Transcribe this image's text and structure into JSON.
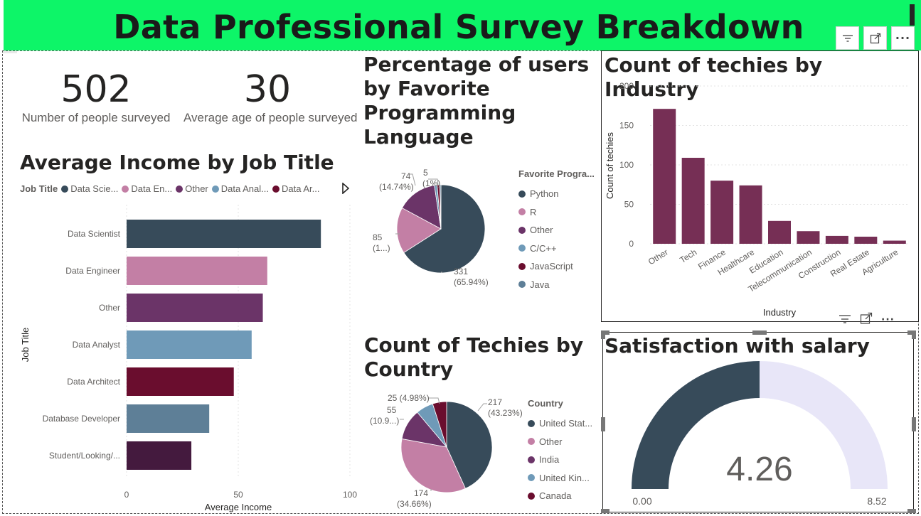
{
  "page": {
    "title": "Data Professional Survey Breakdown"
  },
  "header_buttons": [
    {
      "name": "filter-icon",
      "glyph": "☰"
    },
    {
      "name": "focus-mode-icon",
      "glyph": "⤢"
    },
    {
      "name": "more-options-icon",
      "glyph": "···"
    }
  ],
  "kpis": {
    "surveyed": {
      "value": "502",
      "label": "Number of people surveyed"
    },
    "age": {
      "value": "30",
      "label": "Average age of people surveyed"
    }
  },
  "visual_menu": {
    "filter": "☰",
    "focus": "⤢",
    "more": "···"
  },
  "chart_data": [
    {
      "id": "income",
      "type": "bar",
      "orientation": "horizontal",
      "title": "Average Income by Job Title",
      "legend_title": "Job Title",
      "legend": [
        "Data Scie...",
        "Data En...",
        "Other",
        "Data Anal...",
        "Data Ar..."
      ],
      "categories": [
        "Data Scientist",
        "Data Engineer",
        "Other",
        "Data Analyst",
        "Data Architect",
        "Database Developer",
        "Student/Looking/..."
      ],
      "values": [
        87,
        63,
        61,
        56,
        48,
        37,
        29
      ],
      "colors": [
        "#374b5a",
        "#c37fa5",
        "#6b3468",
        "#6f9ab8",
        "#6a0d2e",
        "#5e7f97",
        "#441a3e"
      ],
      "xlabel": "Average Income",
      "ylabel": "Job Title",
      "xlim": [
        0,
        100
      ],
      "xticks": [
        "0",
        "50",
        "100"
      ]
    },
    {
      "id": "language",
      "type": "pie",
      "title": "Percentage of users by Favorite Programming Language",
      "legend_title": "Favorite Progra...",
      "labels": [
        "Python",
        "R",
        "Other",
        "C/C++",
        "JavaScript",
        "Java"
      ],
      "values": [
        331,
        85,
        74,
        5,
        5,
        2
      ],
      "colors": [
        "#374b5a",
        "#c37fa5",
        "#6b3468",
        "#6f9ab8",
        "#6a0d2e",
        "#5e7f97"
      ],
      "data_labels": [
        {
          "value": "331",
          "pct": "(65.94%)"
        },
        {
          "value": "85",
          "pct": "(1...)"
        },
        {
          "value": "74",
          "pct": "(14.74%)"
        },
        {
          "value": "5",
          "pct": "(1%)"
        }
      ]
    },
    {
      "id": "industry",
      "type": "bar",
      "orientation": "vertical",
      "title": "Count of techies by Industry",
      "categories": [
        "Other",
        "Tech",
        "Finance",
        "Healthcare",
        "Education",
        "Telecommunication",
        "Construction",
        "Real Estate",
        "Agriculture"
      ],
      "values": [
        171,
        109,
        80,
        74,
        29,
        16,
        10,
        9,
        4
      ],
      "color": "#762f55",
      "xlabel": "Industry",
      "ylabel": "Count of techies",
      "ylim": [
        0,
        200
      ],
      "yticks": [
        "0",
        "50",
        "100",
        "150",
        "200"
      ]
    },
    {
      "id": "country",
      "type": "pie",
      "title": "Count of Techies by Country",
      "legend_title": "Country",
      "labels": [
        "United Stat...",
        "Other",
        "India",
        "United Kin...",
        "Canada"
      ],
      "values": [
        217,
        174,
        55,
        31,
        25
      ],
      "colors": [
        "#374b5a",
        "#c37fa5",
        "#6b3468",
        "#6f9ab8",
        "#6a0d2e"
      ],
      "data_labels": [
        {
          "value": "217",
          "pct": "(43.23%)"
        },
        {
          "value": "174",
          "pct": "(34.66%)"
        },
        {
          "value": "55",
          "pct": "(10.9...)"
        },
        {
          "value": "25",
          "pct": "(4.98%)"
        }
      ]
    },
    {
      "id": "salary",
      "type": "gauge",
      "title": "Satisfaction with salary",
      "value": 4.26,
      "value_label": "4.26",
      "min": 0,
      "max": 8.52,
      "min_label": "0.00",
      "max_label": "8.52",
      "fill_color": "#374b5a",
      "track_color": "#e8e6f8"
    }
  ]
}
